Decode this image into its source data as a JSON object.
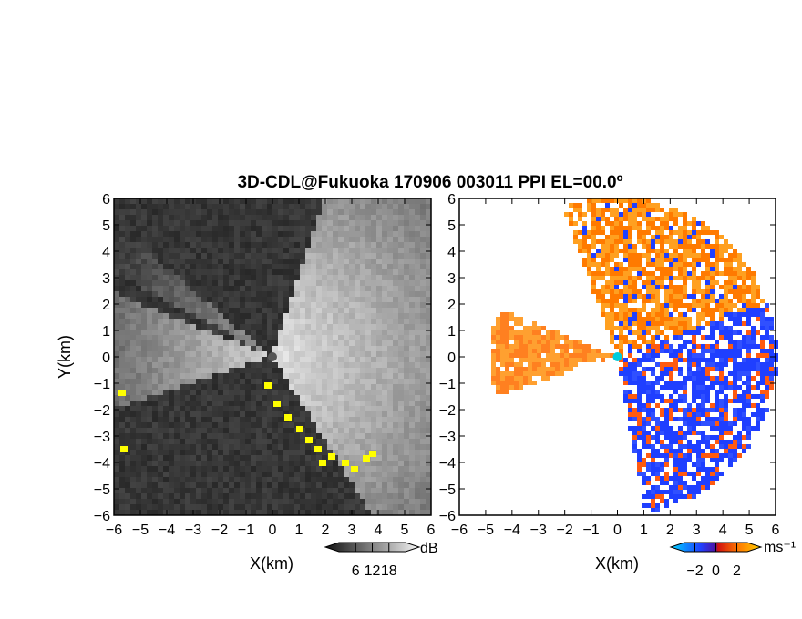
{
  "chart_data": {
    "type": "heatmap",
    "title": "3D-CDL@Fukuoka 170906 003011 PPI EL=00.0º",
    "panels": [
      {
        "name": "reflectivity",
        "xlabel": "X(km)",
        "ylabel": "Y(km)",
        "xlim": [
          -6,
          6
        ],
        "ylim": [
          -6,
          6
        ],
        "xticks": [
          "−6",
          "−5",
          "−4",
          "−3",
          "−2",
          "−1",
          "0",
          "1",
          "2",
          "3",
          "4",
          "5",
          "6"
        ],
        "yticks": [
          "−6",
          "−5",
          "−4",
          "−3",
          "−2",
          "−1",
          "0",
          "1",
          "2",
          "3",
          "4",
          "5",
          "6"
        ],
        "colorbar": {
          "unit": "dB",
          "ticks": [
            "6",
            "12",
            "18"
          ],
          "range": [
            0,
            24
          ]
        },
        "background_dark": "#2a2a2a",
        "bright_color": "#f2f2f2",
        "flag_color": "#ffff00"
      },
      {
        "name": "radial-velocity",
        "xlabel": "X(km)",
        "xlim": [
          -6,
          6
        ],
        "ylim": [
          -6,
          6
        ],
        "xticks": [
          "−6",
          "−5",
          "−4",
          "−3",
          "−2",
          "−1",
          "0",
          "1",
          "2",
          "3",
          "4",
          "5",
          "6"
        ],
        "yticks": [
          "−6",
          "−5",
          "−4",
          "−3",
          "−2",
          "−1",
          "0",
          "1",
          "2",
          "3",
          "4",
          "5",
          "6"
        ],
        "colorbar": {
          "unit": "ms⁻¹",
          "ticks": [
            "−2",
            "0",
            "2"
          ],
          "range": [
            -3,
            3
          ]
        },
        "colors": {
          "receding": "#ff6a00",
          "approaching": "#1f3fff",
          "center": "#00ccdd"
        }
      }
    ],
    "grid": false
  }
}
